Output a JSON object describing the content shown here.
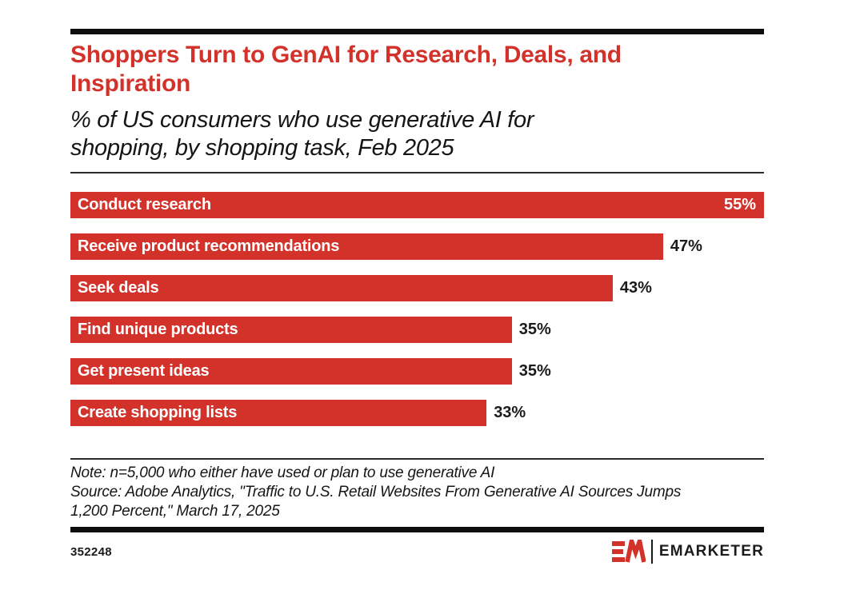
{
  "header": {
    "title_lines": [
      "Shoppers Turn to GenAI for Research, Deals, and",
      "Inspiration"
    ],
    "subtitle_lines": [
      "% of US consumers who use generative AI for",
      "shopping, by shopping task, Feb 2025"
    ]
  },
  "notes": {
    "lines": [
      "Note: n=5,000 who either have used or plan to use generative AI",
      "Source: Adobe Analytics, \"Traffic to U.S. Retail Websites From Generative AI Sources Jumps",
      "1,200 Percent,\" March 17, 2025"
    ]
  },
  "footer": {
    "chart_id": "352248",
    "brand_name": "EMARKETER"
  },
  "colors": {
    "accent_red": "#d3322b",
    "text_dark": "#1b1b1b",
    "bar_label_white": "#ffffff"
  },
  "chart_data": {
    "type": "bar",
    "orientation": "horizontal",
    "title": "Shoppers Turn to GenAI for Research, Deals, and Inspiration",
    "subtitle": "% of US consumers who use generative AI for shopping, by shopping task, Feb 2025",
    "categories": [
      "Conduct research",
      "Receive product recommendations",
      "Seek deals",
      "Find unique products",
      "Get present ideas",
      "Create shopping lists"
    ],
    "values": [
      55,
      47,
      43,
      35,
      35,
      33
    ],
    "value_suffix": "%",
    "xlim": [
      0,
      55
    ],
    "grid": false,
    "legend": false,
    "bar_color": "#d3322b",
    "value_label_placement": "inside-for-max-outside-otherwise"
  }
}
